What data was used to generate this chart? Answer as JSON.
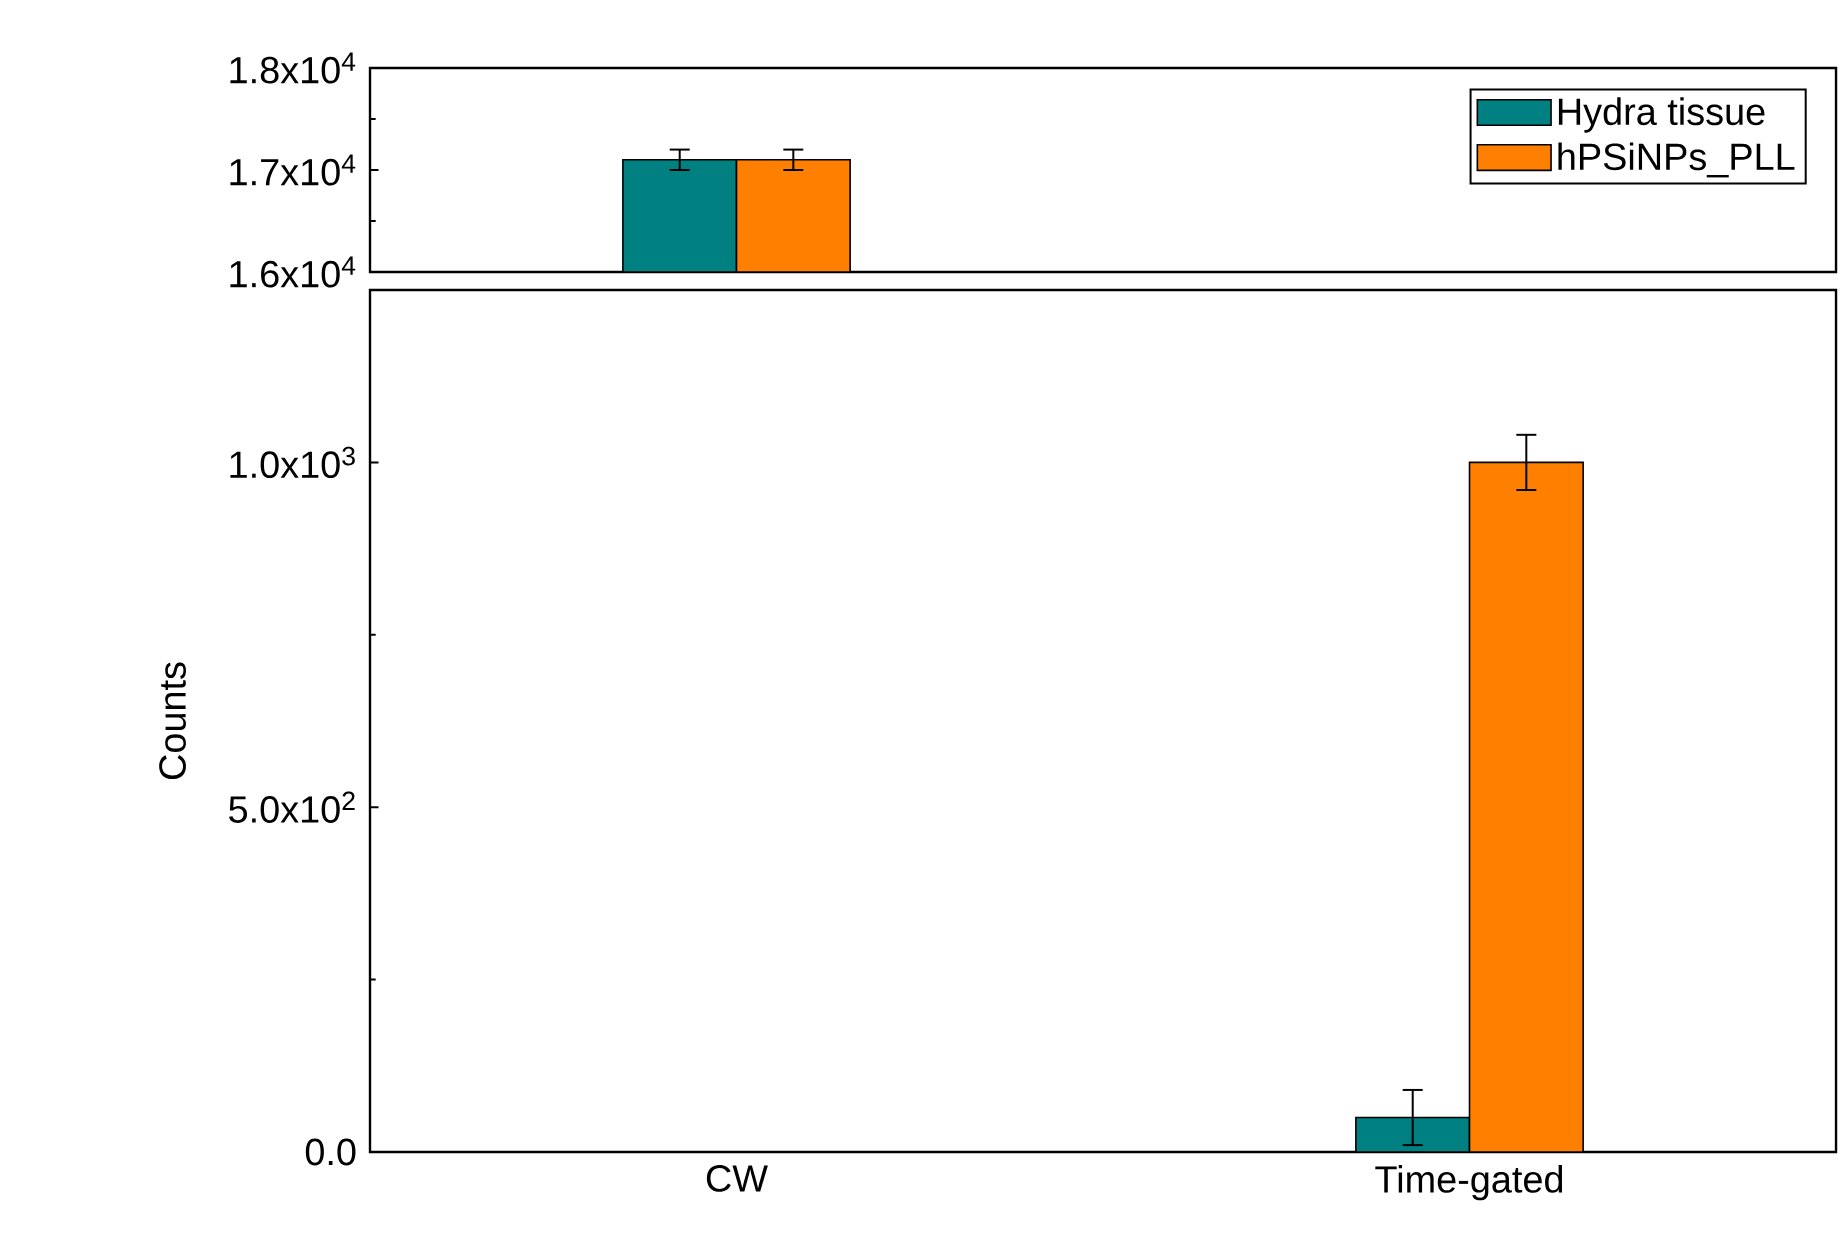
{
  "chart_data": [
    {
      "type": "bar",
      "categories": [
        null
      ],
      "series": [
        {
          "name": "Hydra tissue",
          "color": "#008080",
          "values": [
            17100
          ],
          "errors": [
            100
          ]
        },
        {
          "name": "hPSiNPs_PLL",
          "color": "#ff8000",
          "values": [
            17100
          ],
          "errors": [
            100
          ]
        }
      ],
      "ylim": [
        16000,
        18000
      ],
      "yticks": [
        {
          "value": 16000,
          "label": "1.6x10$^{4}$"
        },
        {
          "value": 17000,
          "label": "1.7x10$^{4}$"
        },
        {
          "value": 18000,
          "label": "1.8x10$^{4}$"
        }
      ],
      "tick_labels": "y",
      "legend": "top right"
    },
    {
      "type": "bar",
      "categories": [
        "CW",
        "Time-gated"
      ],
      "series": [
        {
          "color": "#008080",
          "values": [
            null,
            50
          ],
          "errors": [
            null,
            40
          ]
        },
        {
          "color": "#ff8000",
          "values": [
            null,
            1000
          ],
          "errors": [
            null,
            40
          ]
        }
      ],
      "ylabel": "Counts",
      "ylim": [
        0,
        1250
      ],
      "yticks": [
        {
          "value": 0,
          "label": "0.0"
        },
        {
          "value": 500,
          "label": "5.0x10$^{2}$"
        },
        {
          "value": 1000,
          "label": "1.0x10$^{3}$"
        }
      ]
    }
  ]
}
